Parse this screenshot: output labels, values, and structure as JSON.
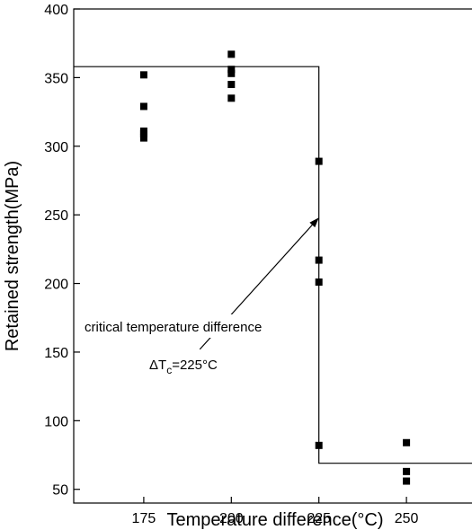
{
  "chart_data": {
    "type": "scatter",
    "title": "",
    "xlabel": "Temperature difference(°C)",
    "ylabel": "Retained strength(MPa)",
    "xlim": [
      155,
      270
    ],
    "ylim": [
      40,
      400
    ],
    "x_ticks": [
      175,
      200,
      225,
      250
    ],
    "x_tick_labels": [
      "175",
      "200",
      "225",
      "250"
    ],
    "y_ticks": [
      50,
      100,
      150,
      200,
      250,
      300,
      350,
      400
    ],
    "y_tick_labels": [
      "50",
      "100",
      "150",
      "200",
      "250",
      "300",
      "350",
      "400"
    ],
    "grid": false,
    "legend": "none",
    "series": [
      {
        "points": [
          [
            175,
            352
          ],
          [
            175,
            329
          ],
          [
            175,
            311
          ],
          [
            175,
            309
          ],
          [
            175,
            306
          ],
          [
            200,
            367
          ],
          [
            200,
            356
          ],
          [
            200,
            353
          ],
          [
            200,
            345
          ],
          [
            200,
            335
          ],
          [
            225,
            289
          ],
          [
            225,
            217
          ],
          [
            225,
            201
          ],
          [
            225,
            82
          ],
          [
            250,
            84
          ],
          [
            250,
            63
          ],
          [
            250,
            56
          ]
        ],
        "marker": "square",
        "color": "#000000"
      }
    ],
    "step_line": {
      "points": [
        [
          155,
          358
        ],
        [
          225,
          358
        ],
        [
          225,
          69
        ],
        [
          270,
          69
        ]
      ],
      "color": "#000000"
    },
    "annotations": [
      {
        "text": "critical temperature difference"
      }
    ],
    "delta_label": {
      "prefix": "ΔT",
      "subscript": "c",
      "suffix": "=225°C"
    },
    "arrow": {
      "from": [
        191,
        152
      ],
      "to": [
        225,
        248
      ]
    }
  }
}
